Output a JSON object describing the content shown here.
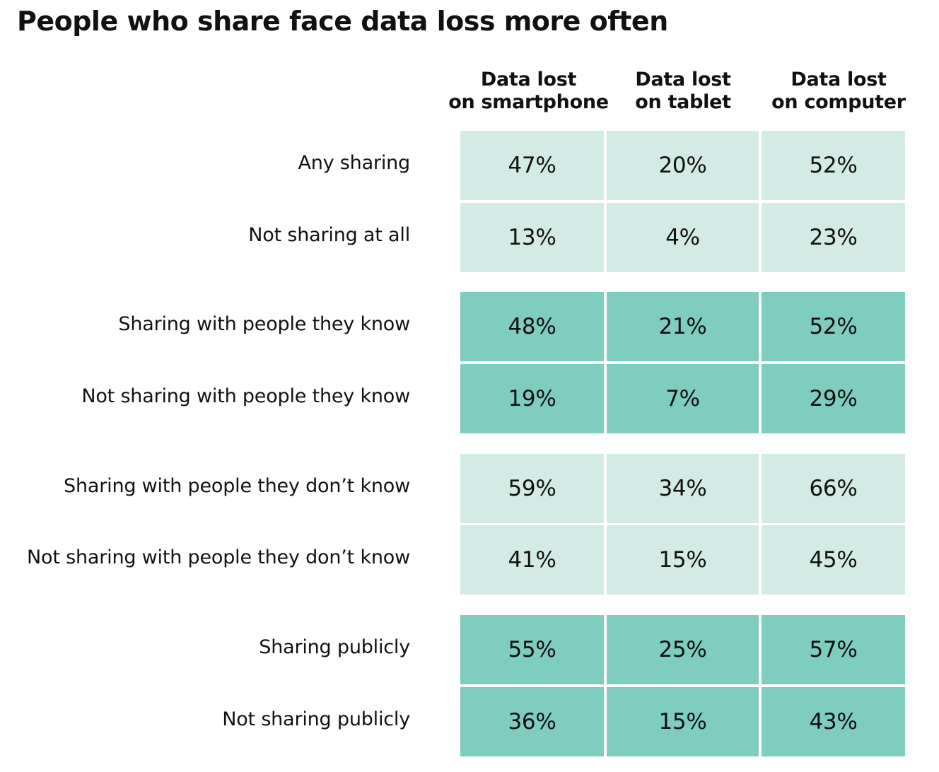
{
  "chart_data": {
    "type": "table",
    "title": "People who share face data loss more often",
    "columns": [
      {
        "line1": "Data lost",
        "line2": "on smartphone"
      },
      {
        "line1": "Data lost",
        "line2": "on tablet"
      },
      {
        "line1": "Data lost",
        "line2": "on computer"
      }
    ],
    "rows": [
      {
        "label": "Any sharing",
        "values": [
          "47%",
          "20%",
          "52%"
        ],
        "shade": "light"
      },
      {
        "label": "Not sharing at all",
        "values": [
          "13%",
          "4%",
          "23%"
        ],
        "shade": "light"
      },
      {
        "label": "Sharing with people they know",
        "values": [
          "48%",
          "21%",
          "52%"
        ],
        "shade": "dark"
      },
      {
        "label": "Not sharing with people they know",
        "values": [
          "19%",
          "7%",
          "29%"
        ],
        "shade": "dark"
      },
      {
        "label": "Sharing with people they don’t know",
        "values": [
          "59%",
          "34%",
          "66%"
        ],
        "shade": "light"
      },
      {
        "label": "Not sharing with people they don’t know",
        "values": [
          "41%",
          "15%",
          "45%"
        ],
        "shade": "light"
      },
      {
        "label": "Sharing publicly",
        "values": [
          "55%",
          "25%",
          "57%"
        ],
        "shade": "dark"
      },
      {
        "label": "Not sharing publicly",
        "values": [
          "36%",
          "15%",
          "43%"
        ],
        "shade": "dark"
      }
    ],
    "colors": {
      "light": "#d4ebe5",
      "dark": "#7fcdbf"
    }
  }
}
